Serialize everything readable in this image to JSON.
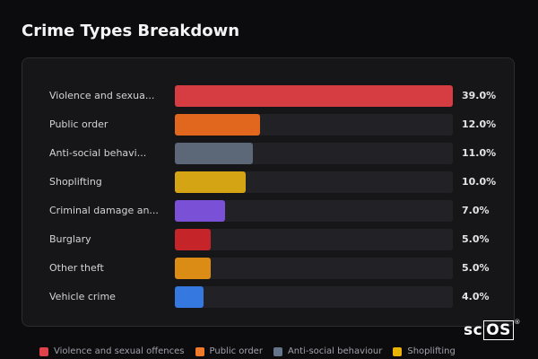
{
  "chart_data": {
    "type": "bar",
    "orientation": "horizontal",
    "title": "Crime Types Breakdown",
    "categories": [
      "Violence and sexua...",
      "Public order",
      "Anti-social behavi...",
      "Shoplifting",
      "Criminal damage an...",
      "Burglary",
      "Other theft",
      "Vehicle crime"
    ],
    "values": [
      39.0,
      12.0,
      11.0,
      10.0,
      7.0,
      5.0,
      5.0,
      4.0
    ],
    "value_labels": [
      "39.0%",
      "12.0%",
      "11.0%",
      "10.0%",
      "7.0%",
      "5.0%",
      "5.0%",
      "4.0%"
    ],
    "colors": [
      "#d63d43",
      "#e0671d",
      "#5c6778",
      "#d4a414",
      "#7a50d6",
      "#c52428",
      "#db8c14",
      "#3478e0"
    ],
    "xlim": [
      0,
      39.0
    ],
    "legend": {
      "placement": "bottom",
      "entries": [
        {
          "label": "Violence and sexual offences",
          "color": "#e0424a"
        },
        {
          "label": "Public order",
          "color": "#f07a2a"
        },
        {
          "label": "Anti-social behaviour",
          "color": "#64748b"
        },
        {
          "label": "Shoplifting",
          "color": "#eab308"
        }
      ]
    }
  },
  "logo": {
    "prefix": "sc",
    "boxed": "OS",
    "mark": "®"
  }
}
